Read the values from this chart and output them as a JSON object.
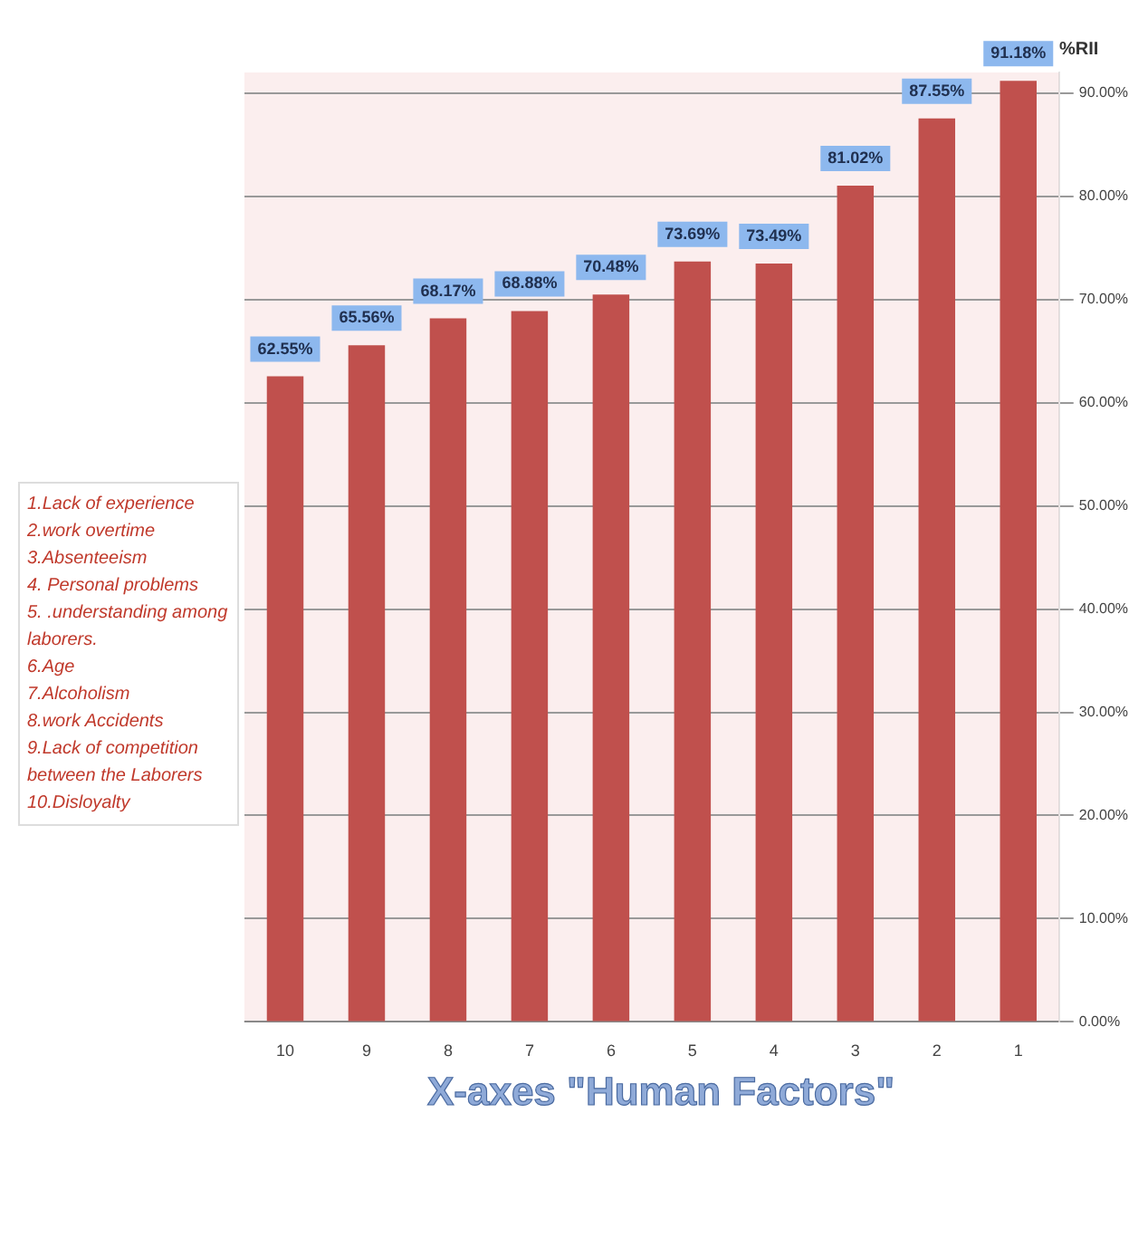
{
  "chart_data": {
    "type": "bar",
    "ylabel": "%RII",
    "xlabel": "X-axes \"Human Factors\"",
    "categories": [
      "10",
      "9",
      "8",
      "7",
      "6",
      "5",
      "4",
      "3",
      "2",
      "1"
    ],
    "values": [
      62.55,
      65.56,
      68.17,
      68.88,
      70.48,
      73.69,
      73.49,
      81.02,
      87.55,
      91.18
    ],
    "value_labels": [
      "62.55%",
      "65.56%",
      "68.17%",
      "68.88%",
      "70.48%",
      "73.69%",
      "73.49%",
      "81.02%",
      "87.55%",
      "91.18%"
    ],
    "color": "#c0504d",
    "ylim": [
      0,
      92
    ],
    "yticks": [
      {
        "value": 0,
        "label": "0.00%"
      },
      {
        "value": 10,
        "label": "10.00%"
      },
      {
        "value": 20,
        "label": "20.00%"
      },
      {
        "value": 30,
        "label": "30.00%"
      },
      {
        "value": 40,
        "label": "40.00%"
      },
      {
        "value": 50,
        "label": "50.00%"
      },
      {
        "value": 60,
        "label": "60.00%"
      },
      {
        "value": 70,
        "label": "70.00%"
      },
      {
        "value": 80,
        "label": "80.00%"
      },
      {
        "value": 90,
        "label": "90.00%"
      }
    ],
    "grid": "y",
    "legend": false,
    "annotations": [
      "1.Lack of experience",
      "2.work overtime",
      "3.Absenteeism",
      "4. Personal problems",
      "5. .understanding among laborers.",
      "6.Age",
      "7.Alcoholism",
      "8.work Accidents",
      "9.Lack of competition between the Laborers",
      "10.Disloyalty"
    ]
  }
}
